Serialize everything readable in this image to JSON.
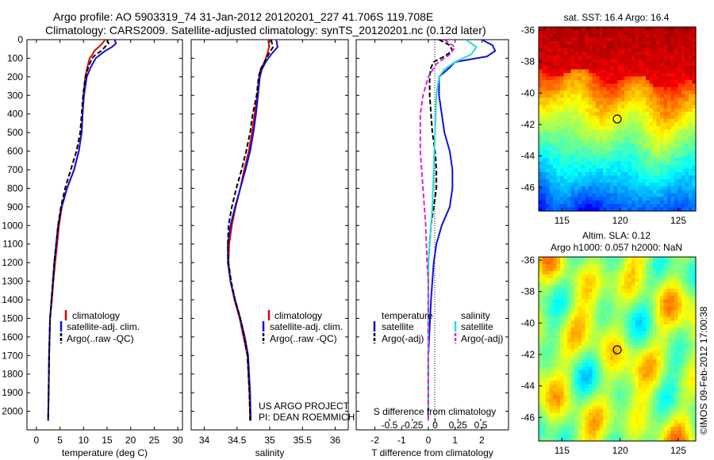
{
  "header": {
    "line1": "Argo profile: AO 5903319_74 31-Jan-2012 20120201_227 41.706S 119.708E",
    "line2": "Climatology: CARS2009. Satellite-adjusted climatology: synTS_20120201.nc (0.12d later)"
  },
  "credit": "©IMOS 09-Feb-2012 17:00:38",
  "project": {
    "line1": "US ARGO PROJECT",
    "line2": "PI: DEAN ROEMMICH"
  },
  "colors": {
    "red": "#dd0000",
    "blue": "#1010dd",
    "black": "#000000",
    "cyan": "#22dddd",
    "magenta": "#dd22dd"
  },
  "chart_data": [
    {
      "type": "line",
      "panel": "temperature",
      "xlabel": "temperature (deg C)",
      "xlim": [
        -2,
        31
      ],
      "ylim": [
        2100,
        0
      ],
      "xticks": [
        0,
        5,
        10,
        15,
        20,
        25,
        30
      ],
      "yticks": [
        0,
        100,
        200,
        300,
        400,
        500,
        600,
        700,
        800,
        900,
        1000,
        1100,
        1200,
        1300,
        1400,
        1500,
        1600,
        1700,
        1800,
        1900,
        2000
      ],
      "legend": [
        "climatology",
        "satellite-adj. clim.",
        "Argo(..raw -QC)"
      ],
      "series": [
        {
          "name": "climatology",
          "color": "red",
          "dash": false,
          "x": [
            14.6,
            14.0,
            13.2,
            12.3,
            11.9,
            11.3,
            10.8,
            10.4,
            10.0,
            9.8,
            9.6,
            9.0,
            8.0,
            6.5,
            5.4,
            4.8,
            4.4,
            4.0,
            3.6,
            3.3,
            2.9,
            2.7,
            2.6,
            2.5
          ],
          "y": [
            0,
            20,
            40,
            60,
            80,
            100,
            150,
            200,
            300,
            400,
            500,
            600,
            700,
            800,
            900,
            1000,
            1100,
            1200,
            1300,
            1400,
            1500,
            1700,
            1900,
            2050
          ]
        },
        {
          "name": "satellite-adj. clim.",
          "color": "blue",
          "dash": false,
          "x": [
            16.6,
            16.9,
            16.0,
            14.6,
            13.6,
            12.6,
            11.5,
            10.7,
            10.1,
            9.8,
            9.6,
            9.0,
            8.0,
            6.5,
            5.3,
            4.6,
            4.2,
            3.8,
            3.5,
            3.2,
            2.9,
            2.7,
            2.6,
            2.5
          ],
          "y": [
            0,
            20,
            40,
            60,
            80,
            100,
            150,
            200,
            300,
            400,
            500,
            600,
            700,
            800,
            900,
            1000,
            1100,
            1200,
            1300,
            1400,
            1500,
            1700,
            1900,
            2050
          ]
        },
        {
          "name": "Argo(..raw -QC)",
          "color": "black",
          "dash": true,
          "x": [
            15.0,
            15.3,
            14.5,
            13.8,
            12.6,
            11.8,
            11.0,
            10.4,
            9.9,
            9.6,
            9.3,
            8.5,
            7.3,
            6.1,
            5.2,
            4.6,
            4.2,
            3.8,
            3.5,
            3.2,
            2.9,
            2.7,
            2.6,
            2.5
          ],
          "y": [
            0,
            20,
            40,
            60,
            80,
            100,
            150,
            200,
            300,
            400,
            500,
            600,
            700,
            800,
            900,
            1000,
            1100,
            1200,
            1300,
            1400,
            1500,
            1700,
            1900,
            2050
          ]
        }
      ]
    },
    {
      "type": "line",
      "panel": "salinity",
      "xlabel": "salinity",
      "xlim": [
        33.8,
        36.2
      ],
      "ylim": [
        2100,
        0
      ],
      "xticks": [
        34,
        34.5,
        35,
        35.5,
        36
      ],
      "legend": [
        "climatology",
        "satellite-adj. clim.",
        "Argo(..raw -QC)"
      ],
      "series": [
        {
          "name": "climatology",
          "color": "red",
          "dash": false,
          "x": [
            34.98,
            34.99,
            34.96,
            34.92,
            34.86,
            34.84,
            34.81,
            34.77,
            34.73,
            34.68,
            34.61,
            34.55,
            34.48,
            34.42,
            34.38,
            34.37,
            34.4,
            34.46,
            34.54,
            34.6,
            34.66,
            34.69,
            34.7
          ],
          "y": [
            0,
            40,
            80,
            120,
            160,
            200,
            300,
            400,
            500,
            600,
            700,
            800,
            900,
            1000,
            1100,
            1200,
            1300,
            1400,
            1500,
            1600,
            1700,
            1900,
            2050
          ]
        },
        {
          "name": "satellite-adj. clim.",
          "color": "blue",
          "dash": false,
          "x": [
            35.1,
            35.12,
            35.02,
            34.94,
            34.88,
            34.85,
            34.82,
            34.79,
            34.75,
            34.7,
            34.63,
            34.55,
            34.47,
            34.4,
            34.36,
            34.36,
            34.4,
            34.47,
            34.55,
            34.62,
            34.67,
            34.7,
            34.71
          ],
          "y": [
            0,
            40,
            80,
            120,
            160,
            200,
            300,
            400,
            500,
            600,
            700,
            800,
            900,
            1000,
            1100,
            1200,
            1300,
            1400,
            1500,
            1600,
            1700,
            1900,
            2050
          ]
        },
        {
          "name": "Argo(..raw -QC)",
          "color": "black",
          "dash": true,
          "x": [
            35.02,
            35.05,
            34.98,
            34.92,
            34.86,
            34.83,
            34.8,
            34.74,
            34.7,
            34.64,
            34.57,
            34.49,
            34.42,
            34.37,
            34.36,
            34.37,
            34.41,
            34.47,
            34.55,
            34.61,
            34.66,
            34.69,
            34.7
          ],
          "y": [
            0,
            40,
            80,
            120,
            160,
            200,
            300,
            400,
            500,
            600,
            700,
            800,
            900,
            1000,
            1100,
            1200,
            1300,
            1400,
            1500,
            1600,
            1700,
            1900,
            2050
          ]
        }
      ]
    },
    {
      "type": "line",
      "panel": "difference",
      "xlabel": "T difference from climatology",
      "xlabel_top": "S difference from climatology",
      "xlim": [
        -2.7,
        3.0
      ],
      "ylim": [
        2100,
        0
      ],
      "xticks": [
        -2,
        -1,
        0,
        1,
        2
      ],
      "sticks": [
        -0.5,
        -0.25,
        0,
        0.25,
        0.5
      ],
      "legend_temperature_title": "temperature",
      "legend_salinity_title": "salinity",
      "legend_temperature": [
        "satellite",
        "Argo(-adj)"
      ],
      "legend_salinity": [
        "satellite",
        "Argo(-adj)"
      ],
      "series": [
        {
          "name": "satellite",
          "group": "temperature",
          "color": "blue",
          "dash": false,
          "x": [
            2.0,
            2.4,
            2.5,
            2.2,
            1.0,
            0.8,
            0.4,
            0.4,
            0.5,
            0.6,
            0.8,
            0.9,
            0.9,
            0.8,
            0.5,
            0.3,
            0.2,
            0.1,
            0.0,
            0.0
          ],
          "y": [
            0,
            30,
            60,
            90,
            120,
            150,
            200,
            300,
            400,
            500,
            600,
            700,
            800,
            900,
            1000,
            1100,
            1200,
            1400,
            1700,
            2050
          ]
        },
        {
          "name": "Argo(-adj)",
          "group": "temperature",
          "color": "black",
          "dash": true,
          "x": [
            0.4,
            0.8,
            0.9,
            0.6,
            0.2,
            0.1,
            0.05,
            0.05,
            0.1,
            0.15,
            0.25,
            0.3,
            0.3,
            0.2,
            0.1,
            0.05,
            0.0,
            0.0,
            0.0,
            0.0
          ],
          "y": [
            0,
            30,
            60,
            90,
            120,
            150,
            200,
            300,
            400,
            500,
            600,
            700,
            800,
            900,
            1000,
            1100,
            1200,
            1400,
            1700,
            2050
          ]
        },
        {
          "name": "satellite",
          "group": "salinity",
          "color": "cyan",
          "dash": false,
          "x": [
            1.4,
            1.8,
            1.6,
            1.0,
            0.6,
            0.4,
            0.3,
            0.25,
            0.2,
            0.15,
            0.1,
            0.05,
            0.0,
            0.0,
            0.0,
            0.0
          ],
          "y": [
            0,
            40,
            80,
            120,
            160,
            200,
            300,
            500,
            700,
            900,
            1000,
            1100,
            1200,
            1400,
            1700,
            2050
          ]
        },
        {
          "name": "Argo(-adj)",
          "group": "salinity",
          "color": "magenta",
          "dash": true,
          "x": [
            0.6,
            1.0,
            0.8,
            0.3,
            0.0,
            -0.2,
            -0.3,
            -0.3,
            -0.2,
            -0.1,
            -0.05,
            0.0,
            0.0,
            0.0,
            0.0
          ],
          "y": [
            0,
            40,
            80,
            130,
            200,
            300,
            400,
            600,
            800,
            1000,
            1200,
            1300,
            1400,
            1700,
            2050
          ]
        }
      ]
    },
    {
      "type": "heatmap",
      "panel": "sst-map",
      "title": "sat. SST: 16.4 Argo: 16.4",
      "xlim": [
        113,
        126.5
      ],
      "ylim": [
        -47.5,
        -35.8
      ],
      "xticks": [
        115,
        120,
        125
      ],
      "yticks": [
        -36,
        -38,
        -40,
        -42,
        -44,
        -46
      ],
      "marker": [
        119.7,
        -41.7
      ]
    },
    {
      "type": "heatmap",
      "panel": "sla-map",
      "title": "Altim. SLA: 0.12",
      "subtitle": "Argo h1000: 0.057 h2000: NaN",
      "xlim": [
        113,
        126.5
      ],
      "ylim": [
        -47.5,
        -35.8
      ],
      "xticks": [
        115,
        120,
        125
      ],
      "yticks": [
        -36,
        -38,
        -40,
        -42,
        -44,
        -46
      ],
      "marker": [
        119.7,
        -41.7
      ]
    }
  ]
}
